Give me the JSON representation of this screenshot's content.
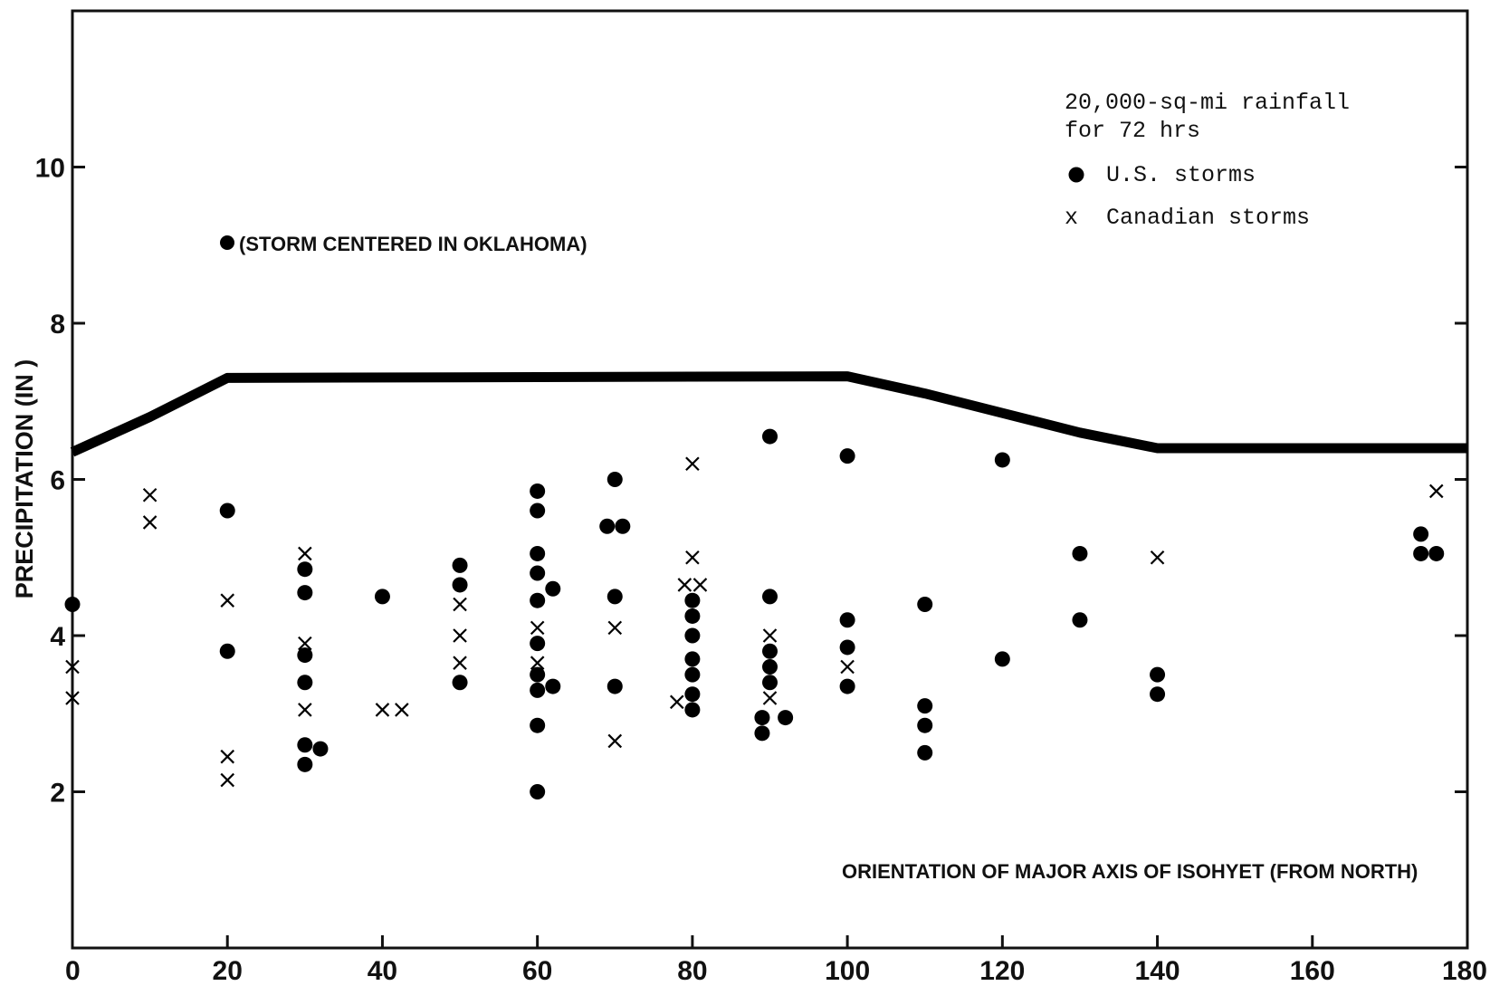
{
  "chart_data": {
    "type": "scatter",
    "title": "",
    "xlabel": "ORIENTATION OF MAJOR AXIS OF ISOHYET (FROM NORTH)",
    "ylabel": "PRECIPITATION (IN )",
    "xlim": [
      0,
      180
    ],
    "ylim": [
      0,
      12
    ],
    "x_ticks": [
      "0",
      "20",
      "40",
      "60",
      "80",
      "100",
      "120",
      "140",
      "160",
      "180"
    ],
    "y_ticks": [
      "2",
      "4",
      "6",
      "8",
      "10"
    ],
    "grid": false,
    "legend": {
      "placement": "top-right",
      "title_lines": [
        "20,000-sq-mi rainfall",
        "for 72 hrs"
      ],
      "entries": [
        {
          "marker": "dot",
          "label": "U.S. storms"
        },
        {
          "marker": "x",
          "label": "Canadian storms"
        }
      ]
    },
    "annotations": [
      {
        "text": "(STORM CENTERED IN OKLAHOMA)",
        "x": 20,
        "y": 9.0
      }
    ],
    "envelope": {
      "name": "",
      "points": [
        [
          0,
          6.35
        ],
        [
          10,
          6.8
        ],
        [
          20,
          7.3
        ],
        [
          100,
          7.32
        ],
        [
          110,
          7.1
        ],
        [
          120,
          6.85
        ],
        [
          130,
          6.6
        ],
        [
          140,
          6.4
        ],
        [
          180,
          6.4
        ]
      ]
    },
    "series": [
      {
        "name": "U.S. storms",
        "marker": "dot",
        "points": [
          [
            0,
            4.4
          ],
          [
            20,
            9.0
          ],
          [
            20,
            5.6
          ],
          [
            20,
            3.8
          ],
          [
            30,
            4.85
          ],
          [
            30,
            4.55
          ],
          [
            30,
            3.75
          ],
          [
            30,
            3.4
          ],
          [
            30,
            2.6
          ],
          [
            30,
            2.35
          ],
          [
            32,
            2.55
          ],
          [
            40,
            4.5
          ],
          [
            50,
            4.9
          ],
          [
            50,
            4.65
          ],
          [
            50,
            3.4
          ],
          [
            60,
            5.85
          ],
          [
            60,
            5.6
          ],
          [
            60,
            5.05
          ],
          [
            60,
            4.8
          ],
          [
            60,
            4.45
          ],
          [
            60,
            3.9
          ],
          [
            60,
            3.5
          ],
          [
            60,
            3.3
          ],
          [
            60,
            2.85
          ],
          [
            60,
            2.0
          ],
          [
            62,
            4.6
          ],
          [
            62,
            3.35
          ],
          [
            69,
            5.4
          ],
          [
            70,
            6.0
          ],
          [
            71,
            5.4
          ],
          [
            70,
            4.5
          ],
          [
            70,
            3.35
          ],
          [
            80,
            4.45
          ],
          [
            80,
            4.25
          ],
          [
            80,
            4.0
          ],
          [
            80,
            3.7
          ],
          [
            80,
            3.5
          ],
          [
            80,
            3.25
          ],
          [
            80,
            3.05
          ],
          [
            90,
            6.55
          ],
          [
            90,
            4.5
          ],
          [
            90,
            3.8
          ],
          [
            90,
            3.6
          ],
          [
            90,
            3.4
          ],
          [
            89,
            2.95
          ],
          [
            92,
            2.95
          ],
          [
            89,
            2.75
          ],
          [
            100,
            6.3
          ],
          [
            100,
            4.2
          ],
          [
            100,
            3.85
          ],
          [
            100,
            3.35
          ],
          [
            110,
            4.4
          ],
          [
            110,
            3.1
          ],
          [
            110,
            2.85
          ],
          [
            110,
            2.5
          ],
          [
            120,
            6.25
          ],
          [
            120,
            3.7
          ],
          [
            130,
            5.05
          ],
          [
            130,
            4.2
          ],
          [
            140,
            3.5
          ],
          [
            140,
            3.25
          ],
          [
            174,
            5.3
          ],
          [
            174,
            5.05
          ],
          [
            176,
            5.05
          ]
        ]
      },
      {
        "name": "Canadian storms",
        "marker": "x",
        "points": [
          [
            0,
            3.6
          ],
          [
            0,
            3.2
          ],
          [
            10,
            5.8
          ],
          [
            10,
            5.45
          ],
          [
            20,
            4.45
          ],
          [
            20,
            2.45
          ],
          [
            20,
            2.15
          ],
          [
            30,
            5.05
          ],
          [
            30,
            3.9
          ],
          [
            30,
            3.05
          ],
          [
            40,
            3.05
          ],
          [
            42.5,
            3.05
          ],
          [
            50,
            4.4
          ],
          [
            50,
            4.0
          ],
          [
            50,
            3.65
          ],
          [
            60,
            4.1
          ],
          [
            60,
            3.65
          ],
          [
            70,
            4.1
          ],
          [
            70,
            2.65
          ],
          [
            78,
            3.15
          ],
          [
            79,
            4.65
          ],
          [
            81,
            4.65
          ],
          [
            80,
            6.2
          ],
          [
            80,
            5.0
          ],
          [
            90,
            4.0
          ],
          [
            90,
            3.2
          ],
          [
            100,
            3.6
          ],
          [
            140,
            5.0
          ],
          [
            176,
            5.85
          ]
        ]
      }
    ]
  }
}
